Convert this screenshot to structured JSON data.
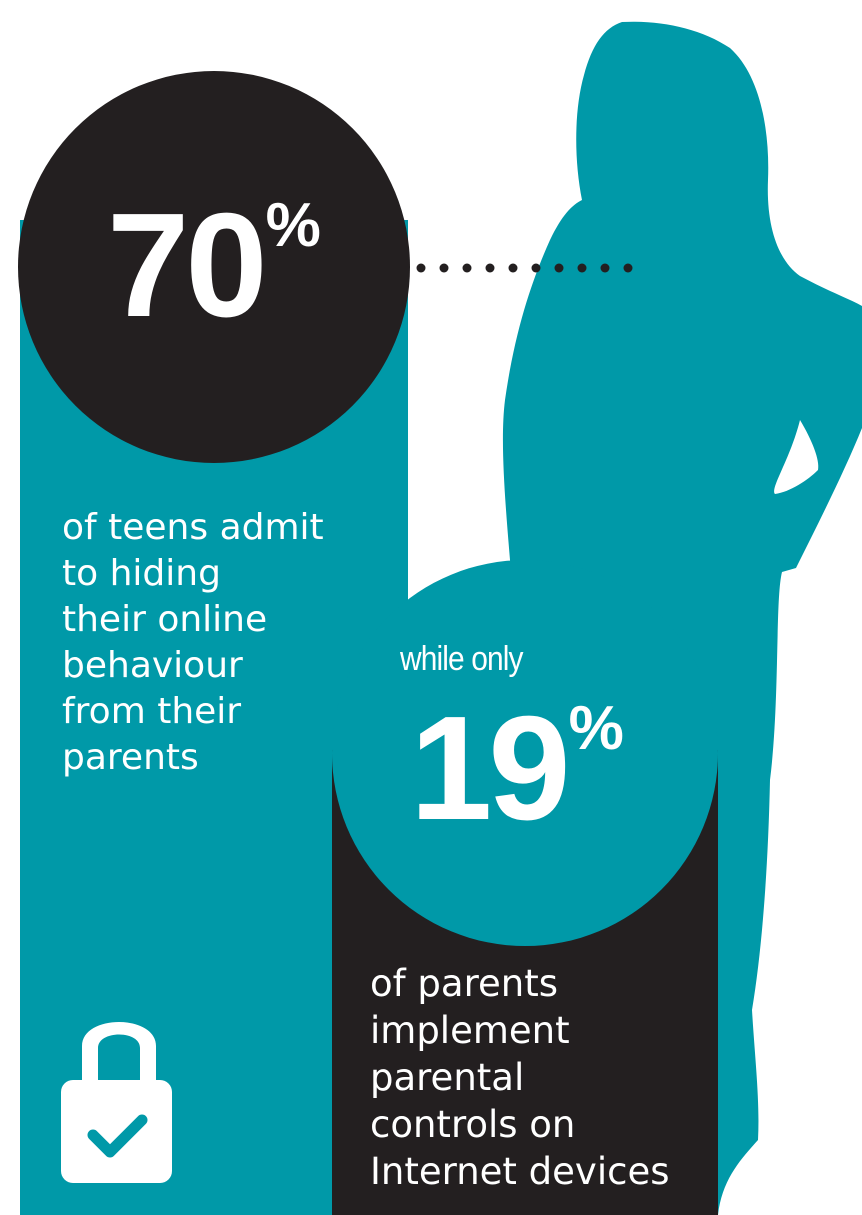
{
  "colors": {
    "teal": "#0099a8",
    "dark": "#231f20",
    "white": "#ffffff"
  },
  "stat_teens": {
    "value": "70",
    "unit": "%",
    "caption": "of teens admit\nto hiding\ntheir online\nbehaviour\nfrom their\nparents"
  },
  "stat_parents": {
    "intro": "while only",
    "value": "19",
    "unit": "%",
    "caption": "of parents\nimplement\nparental\ncontrols on\nInternet devices"
  },
  "icons": {
    "lock": "lock-check-icon",
    "figure": "teen-silhouette"
  }
}
